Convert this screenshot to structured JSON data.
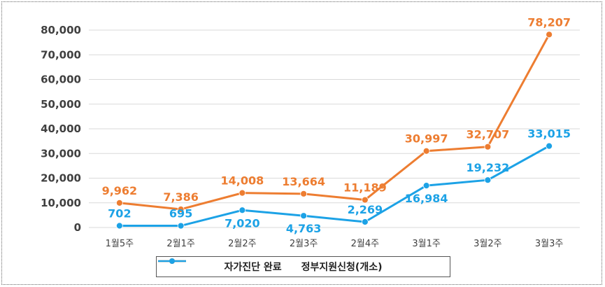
{
  "chart_data": {
    "type": "line",
    "categories": [
      "1월5주",
      "2월1주",
      "2월2주",
      "2월3주",
      "2월4주",
      "3월1주",
      "3월2주",
      "3월3주"
    ],
    "series": [
      {
        "name": "자가진단 완료",
        "color": "#ED7D31",
        "values": [
          9962,
          7386,
          14008,
          13664,
          11189,
          30997,
          32707,
          78207
        ],
        "labels": [
          "9,962",
          "7,386",
          "14,008",
          "13,664",
          "11,189",
          "30,997",
          "32,707",
          "78,207"
        ]
      },
      {
        "name": "정부지원신청(개소)",
        "color": "#1CA2E6",
        "values": [
          702,
          695,
          7020,
          4763,
          2269,
          16984,
          19232,
          33015
        ],
        "labels": [
          "702",
          "695",
          "7,020",
          "4,763",
          "2,269",
          "16,984",
          "19,232",
          "33,015"
        ]
      }
    ],
    "ylim": [
      0,
      80000
    ],
    "yticks": [
      0,
      10000,
      20000,
      30000,
      40000,
      50000,
      60000,
      70000,
      80000
    ],
    "ytick_labels": [
      "0",
      "10,000",
      "20,000",
      "30,000",
      "40,000",
      "50,000",
      "60,000",
      "70,000",
      "80,000"
    ],
    "grid": true,
    "legend": "bottom"
  }
}
